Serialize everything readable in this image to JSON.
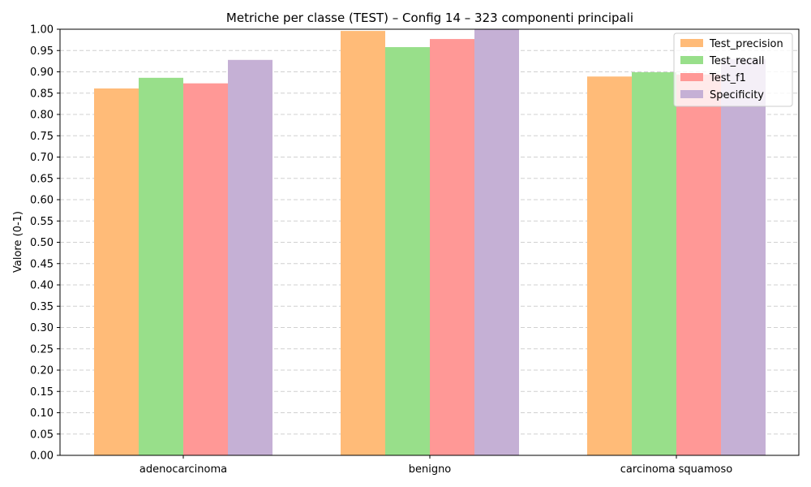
{
  "chart_data": {
    "type": "bar",
    "title": "Metriche per classe (TEST) – Config 14 – 323 componenti principali",
    "xlabel": "",
    "ylabel": "Valore (0-1)",
    "ylim": [
      0,
      1
    ],
    "yticks": [
      "0.00",
      "0.05",
      "0.10",
      "0.15",
      "0.20",
      "0.25",
      "0.30",
      "0.35",
      "0.40",
      "0.45",
      "0.50",
      "0.55",
      "0.60",
      "0.65",
      "0.70",
      "0.75",
      "0.80",
      "0.85",
      "0.90",
      "0.95",
      "1.00"
    ],
    "grid": "horizontal dashed",
    "legend_position": "top-right",
    "categories": [
      "adenocarcinoma",
      "benigno",
      "carcinoma squamoso"
    ],
    "series": [
      {
        "name": "Test_precision",
        "color": "#ffbb78",
        "values": [
          0.861,
          0.996,
          0.889
        ]
      },
      {
        "name": "Test_recall",
        "color": "#98df8a",
        "values": [
          0.886,
          0.958,
          0.899
        ]
      },
      {
        "name": "Test_f1",
        "color": "#ff9896",
        "values": [
          0.873,
          0.977,
          0.894
        ]
      },
      {
        "name": "Specificity",
        "color": "#c5b0d5",
        "values": [
          0.928,
          1.0,
          0.93
        ]
      }
    ]
  }
}
